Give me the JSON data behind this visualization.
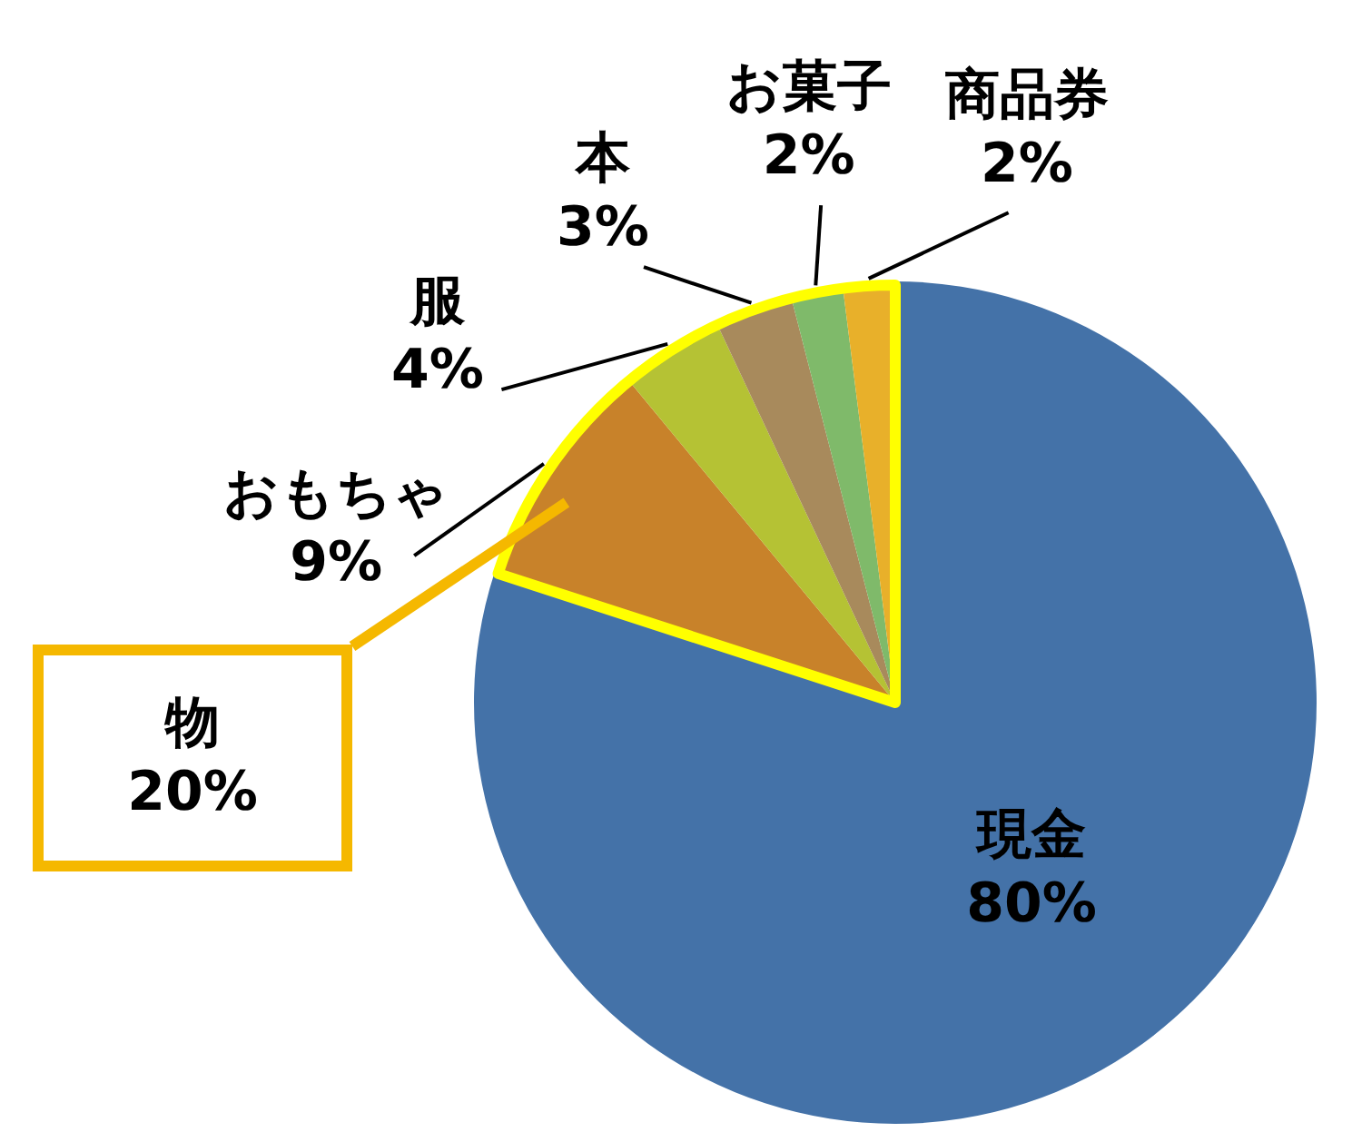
{
  "chart_data": {
    "type": "pie",
    "categories": [
      "現金",
      "おもちゃ",
      "服",
      "本",
      "お菓子",
      "商品券"
    ],
    "values": [
      80,
      9,
      4,
      3,
      2,
      2
    ],
    "colors": [
      "#4472a8",
      "#c8822a",
      "#b5c234",
      "#a88a5c",
      "#7fba6a",
      "#e8b02a"
    ],
    "value_labels": [
      "80%",
      "9%",
      "4%",
      "3%",
      "2%",
      "2%"
    ],
    "annotations": [
      "物\n20%"
    ],
    "legend": false
  }
}
